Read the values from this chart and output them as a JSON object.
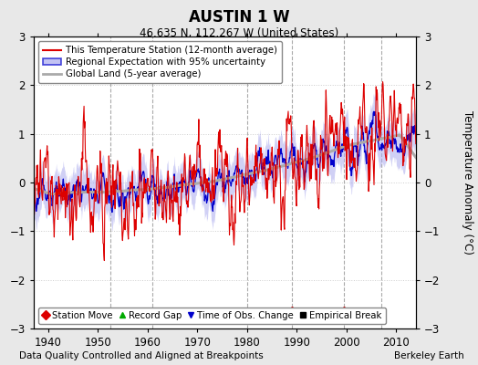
{
  "title": "AUSTIN 1 W",
  "subtitle": "46.635 N, 112.267 W (United States)",
  "xlabel_note": "Data Quality Controlled and Aligned at Breakpoints",
  "xlabel_note_right": "Berkeley Earth",
  "ylabel": "Temperature Anomaly (°C)",
  "xlim": [
    1937,
    2014
  ],
  "ylim": [
    -3,
    3
  ],
  "yticks": [
    -3,
    -2,
    -1,
    0,
    1,
    2,
    3
  ],
  "xticks": [
    1940,
    1950,
    1960,
    1970,
    1980,
    1990,
    2000,
    2010
  ],
  "bg_color": "#e8e8e8",
  "plot_bg_color": "#ffffff",
  "red_line_color": "#dd0000",
  "blue_line_color": "#0000cc",
  "blue_band_color": "#aaaaee",
  "gray_line_color": "#aaaaaa",
  "vline_color": "#aaaaaa",
  "vline_style": "--",
  "vline_lw": 0.8,
  "grid_color": "#cccccc",
  "marker_y": -2.65,
  "markers": [
    {
      "label": "Time of Obs. Change",
      "color": "#0000cc",
      "marker": "v",
      "x": 1952.5
    },
    {
      "label": "Empirical Break",
      "color": "#000000",
      "marker": "s",
      "x": 1961.0
    },
    {
      "label": "Empirical Break",
      "color": "#000000",
      "marker": "s",
      "x": 1980.0
    },
    {
      "label": "Station Move",
      "color": "#dd0000",
      "marker": "D",
      "x": 1989.0
    },
    {
      "label": "Station Move",
      "color": "#dd0000",
      "marker": "D",
      "x": 1999.5
    },
    {
      "label": "Record Gap",
      "color": "#00aa00",
      "marker": "^",
      "x": 2007.0
    }
  ],
  "vlines": [
    1952.5,
    1961.0,
    1980.0,
    1989.0,
    1999.5,
    2007.0
  ],
  "legend_labels": [
    "This Temperature Station (12-month average)",
    "Regional Expectation with 95% uncertainty",
    "Global Land (5-year average)"
  ],
  "bottom_legend_labels": [
    "Station Move",
    "Record Gap",
    "Time of Obs. Change",
    "Empirical Break"
  ],
  "bottom_legend_colors": [
    "#dd0000",
    "#00aa00",
    "#0000cc",
    "#000000"
  ],
  "bottom_legend_markers": [
    "D",
    "^",
    "v",
    "s"
  ],
  "seed": 99
}
